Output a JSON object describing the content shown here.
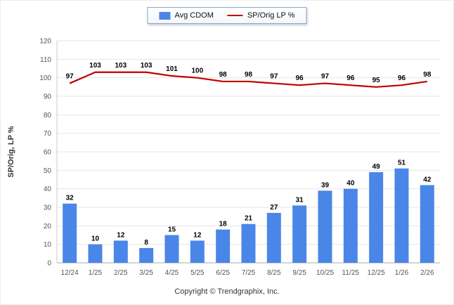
{
  "page": {
    "footer": "Copyright © Trendgraphix, Inc."
  },
  "legend": {
    "items": [
      {
        "label": "Avg CDOM",
        "swatch": "bar"
      },
      {
        "label": "SP/Orig LP %",
        "swatch": "line"
      }
    ]
  },
  "chart_data": {
    "type": "bar+line",
    "categories": [
      "12/24",
      "1/25",
      "2/25",
      "3/25",
      "4/25",
      "5/25",
      "6/25",
      "7/25",
      "8/25",
      "9/25",
      "10/25",
      "11/25",
      "12/25",
      "1/26",
      "2/26"
    ],
    "series": [
      {
        "name": "Avg CDOM",
        "type": "bar",
        "color": "#4a86e8",
        "values": [
          32,
          10,
          12,
          8,
          15,
          12,
          18,
          21,
          27,
          31,
          39,
          40,
          49,
          51,
          42
        ]
      },
      {
        "name": "SP/Orig LP %",
        "type": "line",
        "color": "#c00000",
        "values": [
          97,
          103,
          103,
          103,
          101,
          100,
          98,
          98,
          97,
          96,
          97,
          96,
          95,
          96,
          98
        ]
      }
    ],
    "title": "",
    "xlabel": "",
    "ylabel": "SP/Orig, LP %",
    "ylim": [
      0,
      120
    ],
    "ytick_step": 10,
    "grid": true,
    "legend_position": "top-center",
    "label_color": "#000000",
    "tick_color": "#555555",
    "grid_color": "#e4e4e4"
  }
}
